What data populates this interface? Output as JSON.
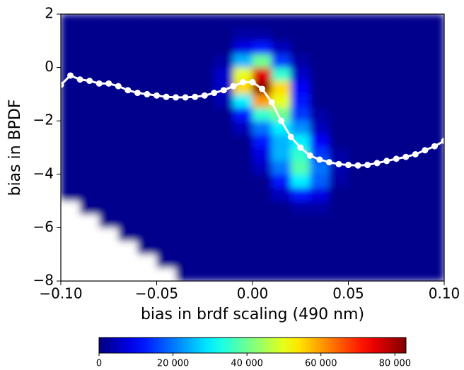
{
  "chart_data": {
    "type": "heatmap",
    "xlabel": "bias in brdf scaling (490 nm)",
    "ylabel": "bias in BPDF",
    "xlim": [
      -0.1,
      0.1
    ],
    "ylim": [
      -8,
      2
    ],
    "xticks": [
      {
        "value": -0.1,
        "label": "−0.10"
      },
      {
        "value": -0.05,
        "label": "−0.05"
      },
      {
        "value": 0,
        "label": "0.00"
      },
      {
        "value": 0.05,
        "label": "0.05"
      },
      {
        "value": 0.1,
        "label": "0.10"
      }
    ],
    "yticks": [
      {
        "value": -8,
        "label": "−8"
      },
      {
        "value": -6,
        "label": "−6"
      },
      {
        "value": -4,
        "label": "−4"
      },
      {
        "value": -2,
        "label": "−2"
      },
      0,
      2
    ],
    "colormap": "jet",
    "clim": [
      0,
      83000
    ],
    "cticks": [
      0,
      {
        "value": 20000,
        "label": "20 000"
      },
      {
        "value": 40000,
        "label": "40 000"
      },
      {
        "value": 60000,
        "label": "60 000"
      },
      {
        "value": 80000,
        "label": "80 000"
      }
    ],
    "x_edges": [
      -0.1,
      -0.09,
      -0.08,
      -0.07,
      -0.06,
      -0.05,
      -0.04,
      -0.03,
      -0.02,
      -0.01,
      0,
      0.01,
      0.02,
      0.03,
      0.04,
      0.05,
      0.06,
      0.07,
      0.08,
      0.09,
      0.1
    ],
    "y_edges": [
      -8,
      -7.5,
      -7,
      -6.5,
      -6,
      -5.5,
      -5,
      -4.5,
      -4,
      -3.5,
      -3,
      -2.5,
      -2,
      -1.5,
      -1,
      -0.5,
      0,
      0.5,
      1,
      1.5,
      2
    ],
    "z": [
      [
        null,
        null,
        null,
        null,
        null,
        null,
        1000,
        1000,
        1000,
        1000,
        1000,
        1000,
        1000,
        1000,
        1000,
        1000,
        1000,
        1000,
        1000,
        1000
      ],
      [
        null,
        null,
        null,
        null,
        null,
        1000,
        1000,
        1000,
        1000,
        1000,
        1000,
        1000,
        1000,
        1000,
        1000,
        1000,
        1000,
        1000,
        1000,
        1000
      ],
      [
        null,
        null,
        null,
        null,
        1000,
        1000,
        1000,
        1000,
        1000,
        1000,
        1000,
        1000,
        1000,
        1000,
        1000,
        1000,
        1000,
        1000,
        1000,
        1000
      ],
      [
        null,
        null,
        null,
        1000,
        1000,
        1000,
        1000,
        1000,
        1000,
        1000,
        1000,
        1000,
        1000,
        1000,
        1000,
        1000,
        1000,
        1000,
        1000,
        1000
      ],
      [
        null,
        null,
        1000,
        1000,
        1000,
        1000,
        1000,
        1000,
        1000,
        1000,
        1000,
        1000,
        1000,
        1000,
        1000,
        1000,
        1000,
        1000,
        1000,
        1000
      ],
      [
        null,
        1000,
        1000,
        1000,
        1000,
        1000,
        1000,
        1000,
        1000,
        1000,
        1000,
        1000,
        3000,
        3000,
        1000,
        1000,
        1000,
        1000,
        1000,
        1000
      ],
      [
        1000,
        1000,
        1000,
        1000,
        1000,
        1000,
        1000,
        1000,
        1000,
        1000,
        1000,
        5000,
        12000,
        8000,
        1000,
        1000,
        1000,
        1000,
        1000,
        1000
      ],
      [
        1000,
        1000,
        1000,
        1000,
        1000,
        1000,
        1000,
        1000,
        1000,
        1000,
        1000,
        12000,
        30000,
        18000,
        3000,
        1000,
        1000,
        1000,
        1000,
        1000
      ],
      [
        1000,
        1000,
        1000,
        1000,
        1000,
        1000,
        1000,
        1000,
        1000,
        1000,
        5000,
        20000,
        38000,
        20000,
        4000,
        1000,
        1000,
        1000,
        1000,
        1000
      ],
      [
        1000,
        1000,
        1000,
        1000,
        1000,
        1000,
        1000,
        1000,
        1000,
        1000,
        8000,
        25000,
        35000,
        15000,
        3000,
        1000,
        1000,
        1000,
        1000,
        1000
      ],
      [
        1000,
        1000,
        1000,
        1000,
        1000,
        1000,
        1000,
        1000,
        1000,
        1000,
        12000,
        25000,
        30000,
        10000,
        1000,
        1000,
        1000,
        1000,
        1000,
        1000
      ],
      [
        1000,
        1000,
        1000,
        1000,
        1000,
        1000,
        1000,
        1000,
        1000,
        5000,
        20000,
        30000,
        22000,
        5000,
        1000,
        1000,
        1000,
        1000,
        1000,
        1000
      ],
      [
        1000,
        1000,
        1000,
        1000,
        1000,
        1000,
        1000,
        1000,
        1000,
        12000,
        35000,
        40000,
        15000,
        3000,
        1000,
        1000,
        1000,
        1000,
        1000,
        1000
      ],
      [
        1000,
        1000,
        1000,
        1000,
        1000,
        1000,
        1000,
        1000,
        4000,
        30000,
        60000,
        50000,
        12000,
        1000,
        1000,
        1000,
        1000,
        1000,
        1000,
        1000
      ],
      [
        1000,
        1000,
        1000,
        1000,
        1000,
        1000,
        1000,
        1000,
        6000,
        55000,
        82000,
        55000,
        10000,
        1000,
        1000,
        1000,
        1000,
        1000,
        1000,
        1000
      ],
      [
        1000,
        1000,
        1000,
        1000,
        1000,
        1000,
        1000,
        1000,
        6000,
        50000,
        75000,
        35000,
        6000,
        1000,
        1000,
        1000,
        1000,
        1000,
        1000,
        1000
      ],
      [
        1000,
        1000,
        1000,
        1000,
        1000,
        1000,
        1000,
        1000,
        3000,
        25000,
        40000,
        15000,
        3000,
        1000,
        1000,
        1000,
        1000,
        1000,
        1000,
        1000
      ],
      [
        1000,
        1000,
        1000,
        1000,
        1000,
        1000,
        1000,
        1000,
        1000,
        8000,
        12000,
        5000,
        1000,
        1000,
        1000,
        1000,
        1000,
        1000,
        1000,
        1000
      ],
      [
        1000,
        1000,
        1000,
        1000,
        1000,
        1000,
        1000,
        1000,
        1000,
        3000,
        3000,
        1000,
        1000,
        1000,
        1000,
        1000,
        1000,
        1000,
        1000,
        1000
      ],
      [
        1000,
        1000,
        1000,
        1000,
        1000,
        1000,
        1000,
        1000,
        1000,
        1000,
        1000,
        1000,
        1000,
        1000,
        1000,
        1000,
        1000,
        1000,
        1000,
        1000
      ]
    ],
    "series": [
      {
        "color": "#ffffff",
        "x": [
          -0.1,
          -0.095,
          -0.09,
          -0.085,
          -0.08,
          -0.075,
          -0.07,
          -0.065,
          -0.06,
          -0.055,
          -0.05,
          -0.045,
          -0.04,
          -0.035,
          -0.03,
          -0.025,
          -0.02,
          -0.015,
          -0.01,
          -0.005,
          0,
          0.005,
          0.01,
          0.015,
          0.02,
          0.025,
          0.03,
          0.035,
          0.04,
          0.045,
          0.05,
          0.055,
          0.06,
          0.065,
          0.07,
          0.075,
          0.08,
          0.085,
          0.09,
          0.095,
          0.1
        ],
        "values": [
          -0.65,
          -0.3,
          -0.45,
          -0.5,
          -0.6,
          -0.6,
          -0.7,
          -0.85,
          -0.95,
          -1.0,
          -1.05,
          -1.1,
          -1.12,
          -1.12,
          -1.1,
          -1.05,
          -0.95,
          -0.85,
          -0.7,
          -0.55,
          -0.55,
          -0.8,
          -1.3,
          -2.0,
          -2.6,
          -3.0,
          -3.3,
          -3.45,
          -3.55,
          -3.62,
          -3.65,
          -3.67,
          -3.65,
          -3.58,
          -3.5,
          -3.42,
          -3.35,
          -3.25,
          -3.1,
          -2.95,
          -2.75
        ]
      }
    ]
  }
}
